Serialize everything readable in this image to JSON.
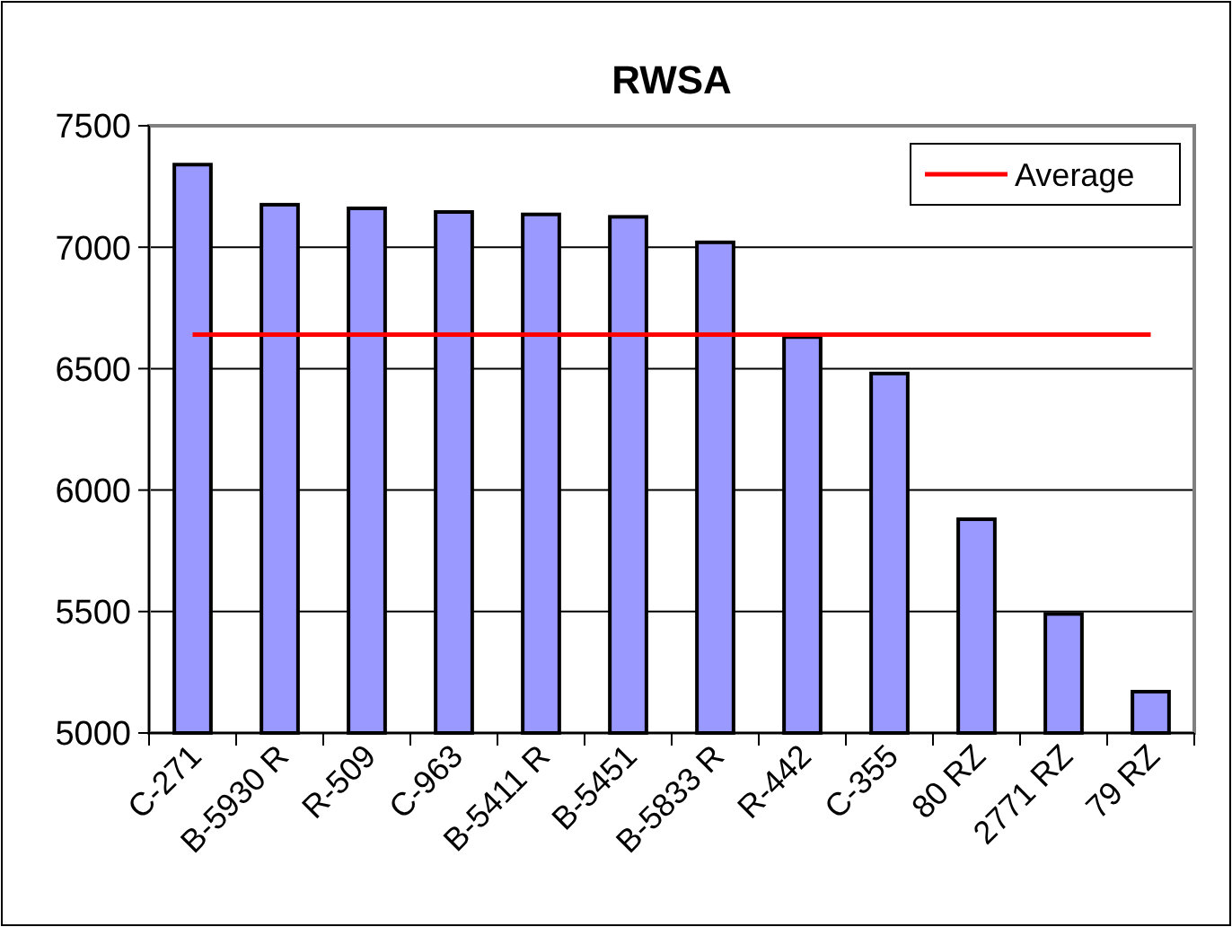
{
  "chart_data": {
    "type": "bar",
    "title": "RWSA",
    "categories": [
      "C-271",
      "B-5930 R",
      "R-509",
      "C-963",
      "B-5411 R",
      "B-5451",
      "B-5833 R",
      "R-442",
      "C-355",
      "80 RZ",
      "2771 RZ",
      "79 RZ"
    ],
    "series": [
      {
        "color": "#9999ff",
        "values": [
          7340,
          7175,
          7160,
          7145,
          7135,
          7125,
          7020,
          6630,
          6480,
          5880,
          5490,
          5170
        ]
      },
      {
        "type": "line",
        "name": "Average",
        "color": "#ff0000",
        "values": [
          6640,
          6640,
          6640,
          6640,
          6640,
          6640,
          6640,
          6640,
          6640,
          6640,
          6640,
          6640
        ]
      }
    ],
    "ylim": [
      5000,
      7500
    ],
    "yticks": [
      5000,
      5500,
      6000,
      6500,
      7000,
      7500
    ],
    "grid": "y",
    "legend": "top right",
    "marker": "none"
  }
}
